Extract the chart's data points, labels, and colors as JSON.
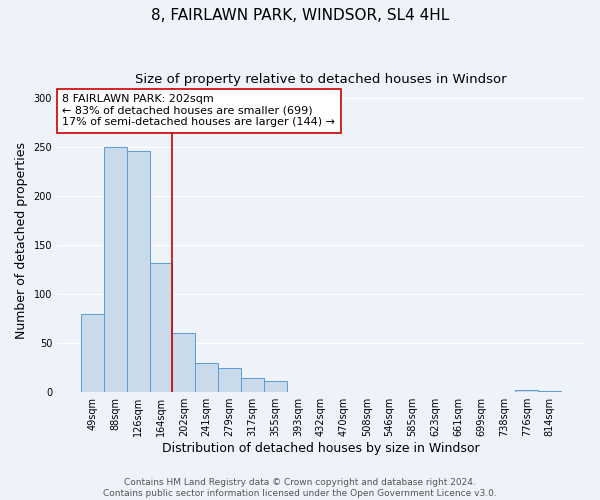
{
  "title": "8, FAIRLAWN PARK, WINDSOR, SL4 4HL",
  "subtitle": "Size of property relative to detached houses in Windsor",
  "xlabel": "Distribution of detached houses by size in Windsor",
  "ylabel": "Number of detached properties",
  "categories": [
    "49sqm",
    "88sqm",
    "126sqm",
    "164sqm",
    "202sqm",
    "241sqm",
    "279sqm",
    "317sqm",
    "355sqm",
    "393sqm",
    "432sqm",
    "470sqm",
    "508sqm",
    "546sqm",
    "585sqm",
    "623sqm",
    "661sqm",
    "699sqm",
    "738sqm",
    "776sqm",
    "814sqm"
  ],
  "values": [
    80,
    250,
    246,
    132,
    60,
    30,
    25,
    14,
    11,
    0,
    0,
    0,
    0,
    0,
    0,
    0,
    0,
    0,
    0,
    2,
    1
  ],
  "bar_color": "#c9daea",
  "bar_edge_color": "#5b9bd5",
  "highlight_line_color": "#cc0000",
  "annotation_line1": "8 FAIRLAWN PARK: 202sqm",
  "annotation_line2": "← 83% of detached houses are smaller (699)",
  "annotation_line3": "17% of semi-detached houses are larger (144) →",
  "annotation_box_color": "#ffffff",
  "annotation_box_edge_color": "#cc0000",
  "ylim": [
    0,
    310
  ],
  "yticks": [
    0,
    50,
    100,
    150,
    200,
    250,
    300
  ],
  "footer_line1": "Contains HM Land Registry data © Crown copyright and database right 2024.",
  "footer_line2": "Contains public sector information licensed under the Open Government Licence v3.0.",
  "title_fontsize": 11,
  "subtitle_fontsize": 9.5,
  "axis_label_fontsize": 9,
  "tick_fontsize": 7,
  "annotation_fontsize": 8,
  "footer_fontsize": 6.5,
  "background_color": "#eef2f9"
}
